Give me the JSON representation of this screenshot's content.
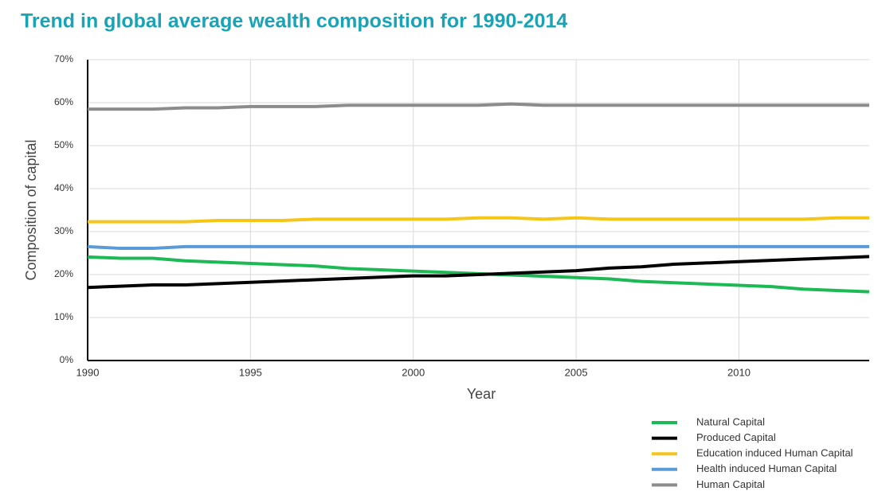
{
  "chart_data": {
    "type": "line",
    "title": "Trend in global average wealth composition for 1990-2014",
    "xlabel": "Year",
    "ylabel": "Composition of capital",
    "x": [
      1990,
      1991,
      1992,
      1993,
      1994,
      1995,
      1996,
      1997,
      1998,
      1999,
      2000,
      2001,
      2002,
      2003,
      2004,
      2005,
      2006,
      2007,
      2008,
      2009,
      2010,
      2011,
      2012,
      2013,
      2014
    ],
    "xlim": [
      1990,
      2014
    ],
    "xticks": [
      1990,
      1995,
      2000,
      2005,
      2010
    ],
    "ylim": [
      0,
      70
    ],
    "yticks": [
      {
        "value": 0,
        "label": "0%"
      },
      {
        "value": 10,
        "label": "10%"
      },
      {
        "value": 20,
        "label": "20%"
      },
      {
        "value": 30,
        "label": "30%"
      },
      {
        "value": 40,
        "label": "40%"
      },
      {
        "value": 50,
        "label": "50%"
      },
      {
        "value": 60,
        "label": "60%"
      },
      {
        "value": 70,
        "label": "70%"
      }
    ],
    "grid": true,
    "legend": "lower right",
    "series": [
      {
        "name": "Natural Capital",
        "color": "#1db954",
        "values": [
          24.1,
          23.8,
          23.8,
          23.2,
          22.9,
          22.6,
          22.3,
          22.0,
          21.4,
          21.1,
          20.8,
          20.5,
          20.2,
          19.9,
          19.6,
          19.3,
          19.0,
          18.4,
          18.1,
          17.8,
          17.5,
          17.2,
          16.6,
          16.3,
          16.0
        ]
      },
      {
        "name": "Produced Capital",
        "color": "#000000",
        "values": [
          17.0,
          17.3,
          17.6,
          17.6,
          17.9,
          18.2,
          18.5,
          18.8,
          19.1,
          19.4,
          19.7,
          19.7,
          20.0,
          20.3,
          20.6,
          20.9,
          21.5,
          21.8,
          22.4,
          22.7,
          23.0,
          23.3,
          23.6,
          23.9,
          24.2
        ]
      },
      {
        "name": "Education induced Human Capital",
        "color": "#f5c518",
        "values": [
          32.3,
          32.3,
          32.3,
          32.3,
          32.6,
          32.6,
          32.6,
          32.9,
          32.9,
          32.9,
          32.9,
          32.9,
          33.2,
          33.2,
          32.9,
          33.2,
          32.9,
          32.9,
          32.9,
          32.9,
          32.9,
          32.9,
          32.9,
          33.2,
          33.2
        ]
      },
      {
        "name": "Health induced Human Capital",
        "color": "#5b9bd5",
        "values": [
          26.5,
          26.1,
          26.1,
          26.5,
          26.5,
          26.5,
          26.5,
          26.5,
          26.5,
          26.5,
          26.5,
          26.5,
          26.5,
          26.5,
          26.5,
          26.5,
          26.5,
          26.5,
          26.5,
          26.5,
          26.5,
          26.5,
          26.5,
          26.5,
          26.5
        ]
      },
      {
        "name": "Human Capital",
        "color": "#8c8c8c",
        "values": [
          58.5,
          58.5,
          58.5,
          58.8,
          58.8,
          59.1,
          59.1,
          59.1,
          59.4,
          59.4,
          59.4,
          59.4,
          59.4,
          59.7,
          59.4,
          59.4,
          59.4,
          59.4,
          59.4,
          59.4,
          59.4,
          59.4,
          59.4,
          59.4,
          59.4
        ]
      }
    ]
  }
}
